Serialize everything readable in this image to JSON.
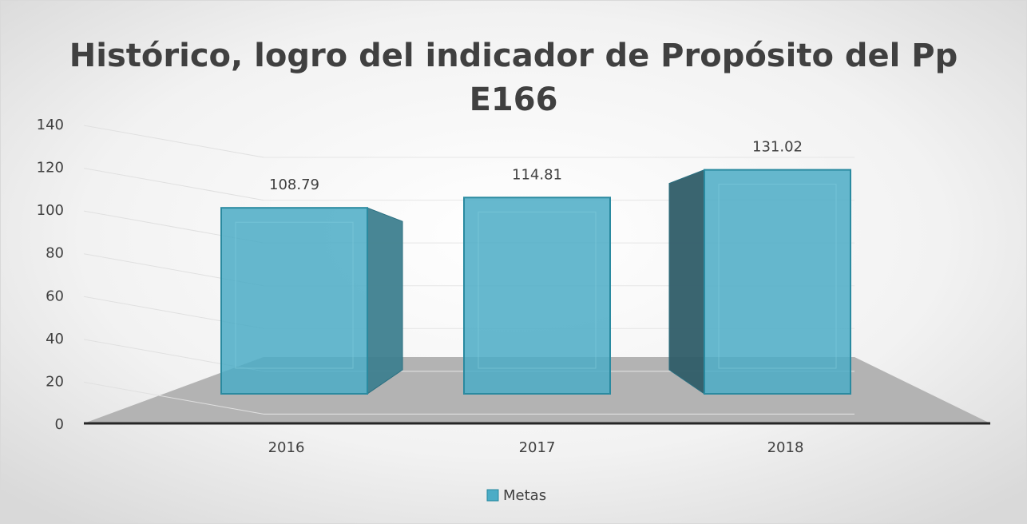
{
  "chart_data": {
    "type": "bar",
    "title": "Histórico, logro del indicador de Propósito del Pp E166",
    "categories": [
      "2016",
      "2017",
      "2018"
    ],
    "series": [
      {
        "name": "Metas",
        "color": "#4bacc6",
        "values": [
          108.79,
          114.81,
          131.02
        ]
      }
    ],
    "ylim": [
      0,
      140
    ],
    "yticks": [
      0,
      20,
      40,
      60,
      80,
      100,
      120,
      140
    ],
    "grid": true,
    "legend": "bottom"
  }
}
